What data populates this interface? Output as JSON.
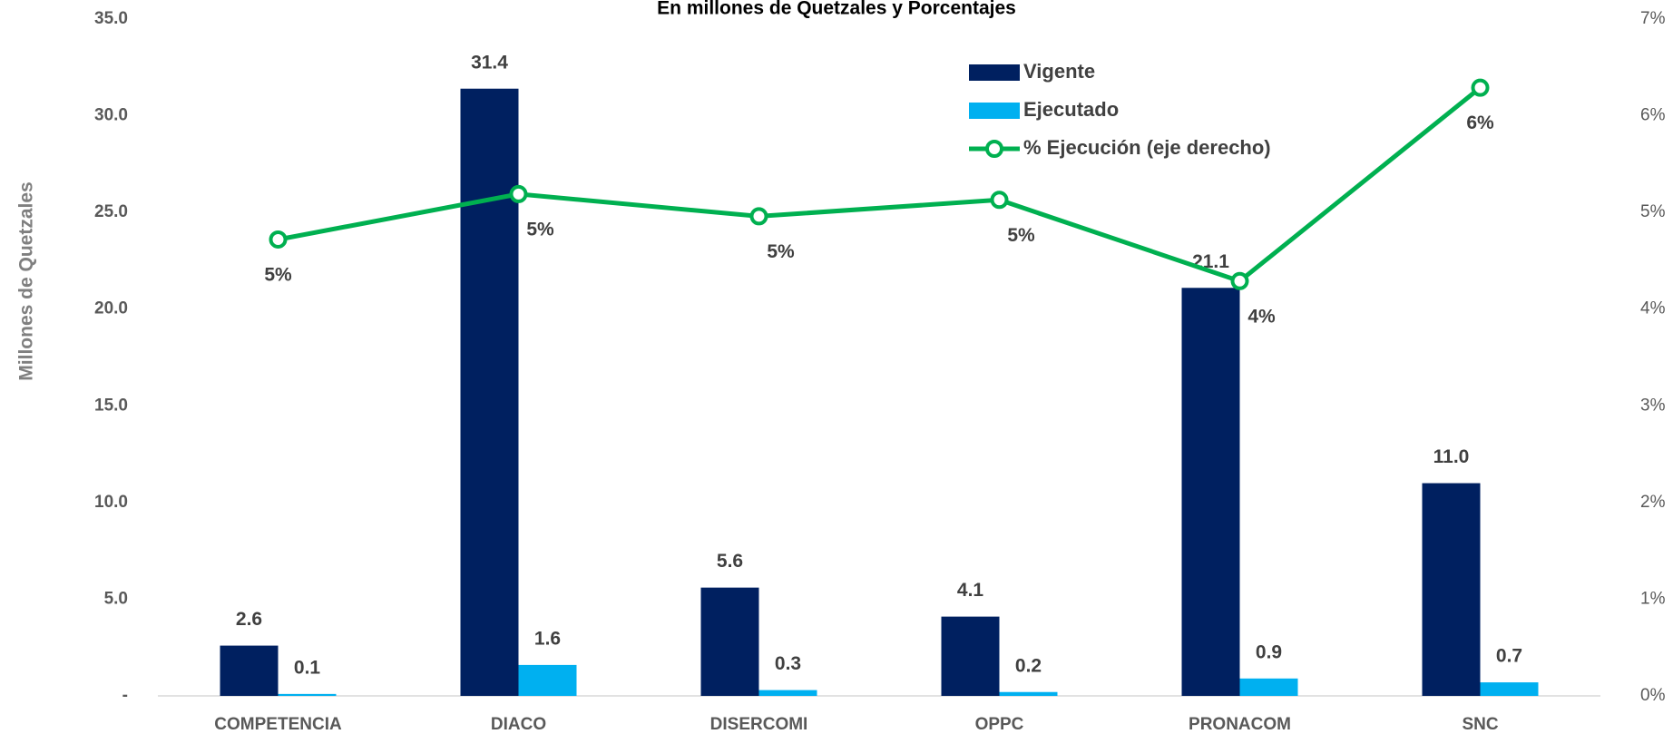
{
  "chart_data": {
    "type": "bar",
    "title": "En millones de Quetzales y Porcentajes",
    "y_label": "Millones de Quetzales",
    "categories": [
      "COMPETENCIA",
      "DIACO",
      "DISERCOMI",
      "OPPC",
      "PRONACOM",
      "SNC"
    ],
    "series": [
      {
        "name": "Vigente",
        "color": "#002060",
        "values": [
          2.6,
          31.4,
          5.6,
          4.1,
          21.1,
          11.0
        ],
        "value_labels": [
          "2.6",
          "31.4",
          "5.6",
          "4.1",
          "21.1",
          "11.0"
        ]
      },
      {
        "name": "Ejecutado",
        "color": "#00b0f0",
        "values": [
          0.1,
          1.6,
          0.3,
          0.2,
          0.9,
          0.7
        ],
        "value_labels": [
          "0.1",
          "1.6",
          "0.3",
          "0.2",
          "0.9",
          "0.7"
        ]
      },
      {
        "name": "% Ejecución (eje derecho)",
        "color": "#00b050",
        "type": "line",
        "axis": "y2",
        "values": [
          4.72,
          5.19,
          4.96,
          5.13,
          4.29,
          6.29
        ],
        "value_labels": [
          "5%",
          "5%",
          "5%",
          "5%",
          "4%",
          "6%"
        ]
      }
    ],
    "ylim": [
      0,
      35
    ],
    "yticks": [
      {
        "value": 0,
        "label": "-"
      },
      {
        "value": 5,
        "label": "5.0"
      },
      {
        "value": 10,
        "label": "10.0"
      },
      {
        "value": 15,
        "label": "15.0"
      },
      {
        "value": 20,
        "label": "20.0"
      },
      {
        "value": 25,
        "label": "25.0"
      },
      {
        "value": 30,
        "label": "30.0"
      },
      {
        "value": 35,
        "label": "35.0"
      }
    ],
    "y2lim": [
      0,
      7
    ],
    "y2ticks": [
      {
        "value": 0,
        "label": "0%"
      },
      {
        "value": 1,
        "label": "1%"
      },
      {
        "value": 2,
        "label": "2%"
      },
      {
        "value": 3,
        "label": "3%"
      },
      {
        "value": 4,
        "label": "4%"
      },
      {
        "value": 5,
        "label": "5%"
      },
      {
        "value": 6,
        "label": "6%"
      },
      {
        "value": 7,
        "label": "7%"
      }
    ],
    "grid": false,
    "legend": "top-right"
  }
}
